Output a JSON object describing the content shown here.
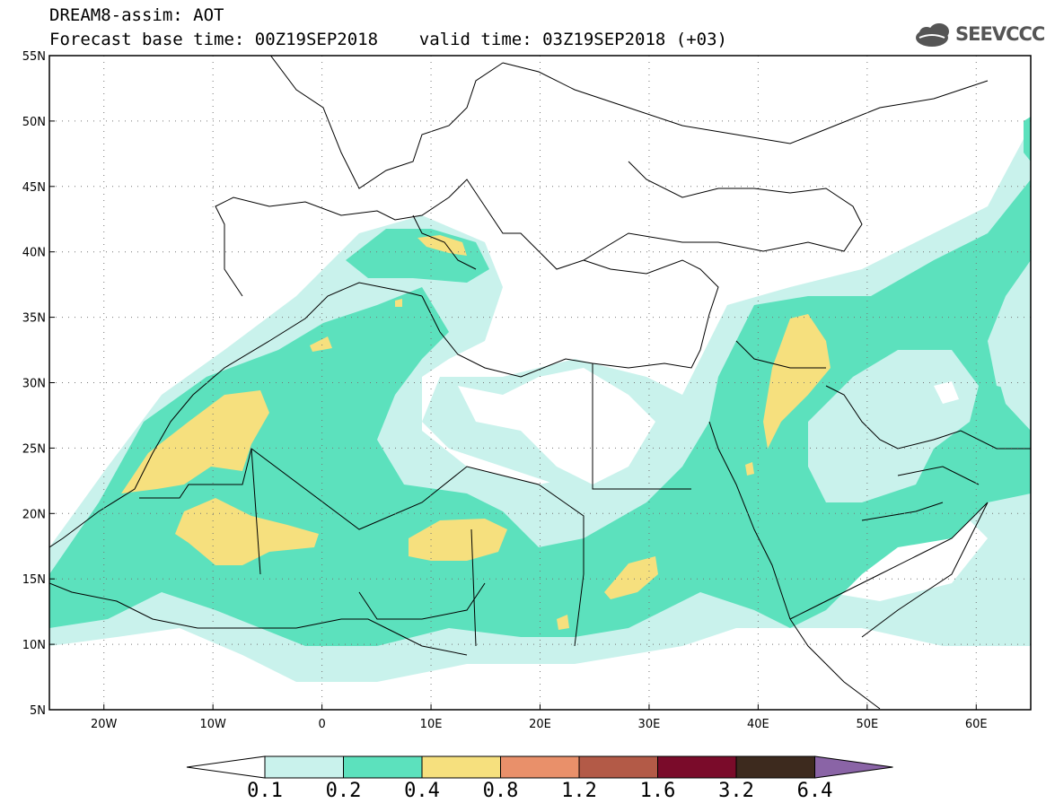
{
  "header": {
    "title_line1": "DREAM8-assim: AOT",
    "title_line2": "Forecast base time: 00Z19SEP2018    valid time: 03Z19SEP2018 (+03)",
    "logo_text": "SEEVCCC"
  },
  "map": {
    "lat_labels": [
      "55N",
      "50N",
      "45N",
      "40N",
      "35N",
      "30N",
      "25N",
      "20N",
      "15N",
      "10N",
      "5N"
    ],
    "lon_labels": [
      "20W",
      "10W",
      "0",
      "10E",
      "20E",
      "30E",
      "40E",
      "50E",
      "60E"
    ],
    "lat_values": [
      55,
      50,
      45,
      40,
      35,
      30,
      25,
      20,
      15,
      10,
      5
    ],
    "lon_values": [
      -20,
      -10,
      0,
      10,
      20,
      30,
      40,
      50,
      60
    ],
    "extent": {
      "lon": [
        -25,
        65
      ],
      "lat": [
        5,
        55
      ]
    }
  },
  "colorbar": {
    "labels": [
      "0.1",
      "0.2",
      "0.4",
      "0.8",
      "1.2",
      "1.6",
      "3.2",
      "6.4"
    ],
    "colors": [
      "#c9f2ec",
      "#5ce1bd",
      "#f6e07e",
      "#e9906a",
      "#b35a47",
      "#7a0b2a",
      "#3d2a1e",
      "#8a64a6"
    ],
    "under_color": "#ffffff"
  }
}
